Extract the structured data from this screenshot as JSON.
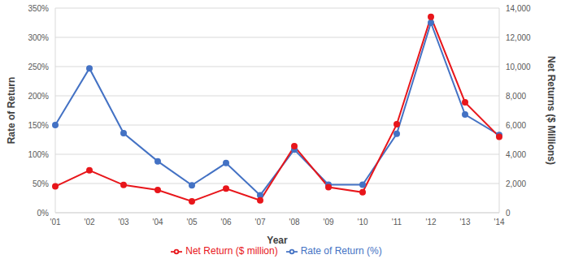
{
  "chart_data": {
    "type": "line",
    "x_label": "Year",
    "y_label": "Rate of Return",
    "y2_label": "Net Returns ($ Millions)",
    "categories": [
      "'01",
      "'02",
      "'03",
      "'04",
      "'05",
      "'06",
      "'07",
      "'08",
      "'09",
      "'10",
      "'11",
      "'12",
      "'13",
      "'14"
    ],
    "series": [
      {
        "name": "Rate of Return (%)",
        "color": "#4472c4",
        "marker": "circle",
        "values": [
          150,
          247,
          136,
          88,
          47,
          85,
          30,
          108,
          48,
          48,
          135,
          325,
          168,
          133
        ]
      },
      {
        "name": "Net Return ($ million)",
        "color": "#e8161b",
        "marker": "circle",
        "axis": "y2",
        "values": [
          1800,
          2900,
          1900,
          1550,
          780,
          1650,
          850,
          4550,
          1750,
          1400,
          6050,
          13400,
          7550,
          5200
        ]
      }
    ],
    "ylim": [
      0,
      350
    ],
    "yticks": [
      {
        "value": 0,
        "label": "0%"
      },
      {
        "value": 50,
        "label": "50%"
      },
      {
        "value": 100,
        "label": "100%"
      },
      {
        "value": 150,
        "label": "150%"
      },
      {
        "value": 200,
        "label": "200%"
      },
      {
        "value": 250,
        "label": "250%"
      },
      {
        "value": 300,
        "label": "300%"
      },
      {
        "value": 350,
        "label": "350%"
      }
    ],
    "y2lim": [
      0,
      14000
    ],
    "y2ticks": [
      0,
      {
        "value": 2000,
        "label": "2,000"
      },
      {
        "value": 4000,
        "label": "4,000"
      },
      {
        "value": 6000,
        "label": "6,000"
      },
      {
        "value": 8000,
        "label": "8,000"
      },
      {
        "value": 10000,
        "label": "10,000"
      },
      {
        "value": 12000,
        "label": "12,000"
      },
      {
        "value": 14000,
        "label": "14,000"
      }
    ],
    "grid": true,
    "legend": "bottom"
  }
}
